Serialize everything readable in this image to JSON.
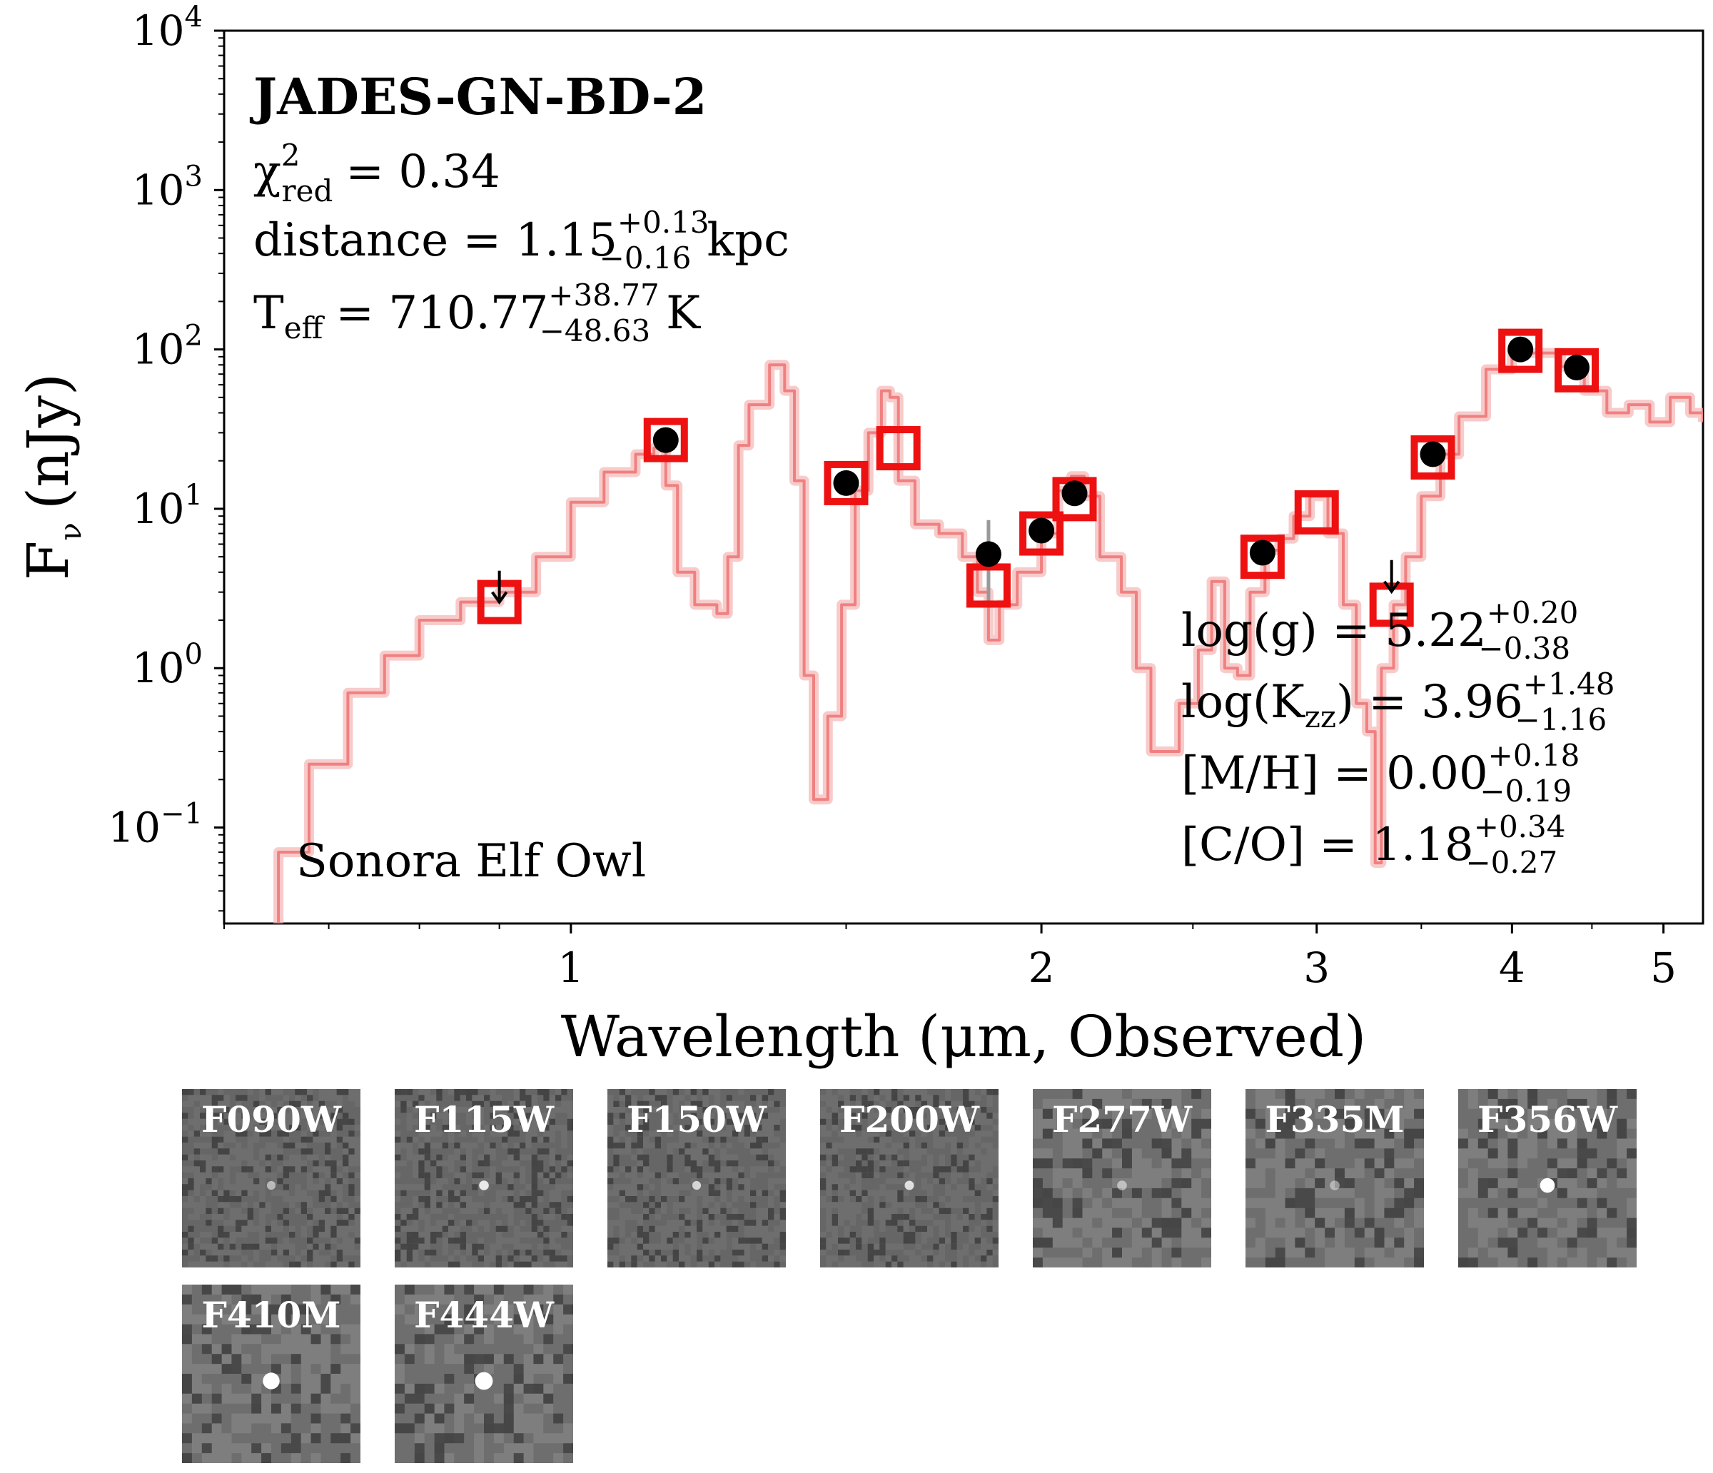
{
  "chart_data": {
    "type": "scatter",
    "title": "JADES-GN-BD-2",
    "xlabel": "Wavelength (μm, Observed)",
    "ylabel_main": "F",
    "ylabel_sub": "ν",
    "ylabel_unit": "(nJy)",
    "xscale": "log",
    "yscale": "log",
    "xlim": [
      0.6,
      5.3
    ],
    "ylim": [
      0.025,
      10000
    ],
    "x_ticks": [
      {
        "value": 1,
        "label": "1"
      },
      {
        "value": 2,
        "label": "2"
      },
      {
        "value": 3,
        "label": "3"
      },
      {
        "value": 4,
        "label": "4"
      },
      {
        "value": 5,
        "label": "5"
      }
    ],
    "y_ticks": [
      {
        "value": 0.1,
        "base": "10",
        "exp": "−1"
      },
      {
        "value": 1,
        "base": "10",
        "exp": "0"
      },
      {
        "value": 10,
        "base": "10",
        "exp": "1"
      },
      {
        "value": 100,
        "base": "10",
        "exp": "2"
      },
      {
        "value": 1000,
        "base": "10",
        "exp": "3"
      },
      {
        "value": 10000,
        "base": "10",
        "exp": "4"
      }
    ],
    "model_label": "Sonora Elf Owl",
    "fit_stats": {
      "chi2_prefix": "χ",
      "chi2_sup": "2",
      "chi2_sub": "red",
      "chi2_value": "= 0.34",
      "distance_prefix": "distance = 1.15",
      "distance_up": "+0.13",
      "distance_down": "−0.16",
      "distance_unit": "kpc",
      "teff_prefix": "T",
      "teff_sub": "eff",
      "teff_value": "= 710.77",
      "teff_up": "+38.77",
      "teff_down": "−48.63",
      "teff_unit": "K"
    },
    "params": [
      {
        "text": "log(g) = 5.22",
        "up": "+0.20",
        "down": "−0.38"
      },
      {
        "text_pre": "log(K",
        "text_sub": "zz",
        "text_post": ") = 3.96",
        "up": "+1.48",
        "down": "−1.16"
      },
      {
        "text": "[M/H] = 0.00",
        "up": "+0.18",
        "down": "−0.19"
      },
      {
        "text": "[C/O] = 1.18",
        "up": "+0.34",
        "down": "−0.27"
      }
    ],
    "series": [
      {
        "name": "Observed photometry",
        "marker": "circle",
        "color": "#000000",
        "points": [
          {
            "x": 1.15,
            "y": 27,
            "err_low": 24,
            "err_high": 30
          },
          {
            "x": 1.5,
            "y": 14.5,
            "err_low": 13,
            "err_high": 16
          },
          {
            "x": 1.85,
            "y": 5.2,
            "err_low": 2.4,
            "err_high": 8.5
          },
          {
            "x": 2.0,
            "y": 7.3,
            "err_low": 6.6,
            "err_high": 8.0
          },
          {
            "x": 2.1,
            "y": 12.5,
            "err_low": 11.5,
            "err_high": 13.5
          },
          {
            "x": 2.77,
            "y": 5.3,
            "err_low": 4.8,
            "err_high": 5.8
          },
          {
            "x": 3.56,
            "y": 22,
            "err_low": 20.5,
            "err_high": 23.5
          },
          {
            "x": 4.05,
            "y": 100,
            "err_low": 95,
            "err_high": 105
          },
          {
            "x": 4.4,
            "y": 77,
            "err_low": 73,
            "err_high": 81
          }
        ]
      },
      {
        "name": "Upper limits",
        "marker": "arrow-down",
        "color": "#000000",
        "points": [
          {
            "x": 0.9,
            "y": 3.0
          },
          {
            "x": 3.35,
            "y": 3.5
          }
        ]
      },
      {
        "name": "Model photometry",
        "marker": "square-open",
        "color": "#ee1111",
        "points": [
          {
            "x": 0.9,
            "y": 2.6
          },
          {
            "x": 1.15,
            "y": 27
          },
          {
            "x": 1.5,
            "y": 14.5
          },
          {
            "x": 1.62,
            "y": 24
          },
          {
            "x": 1.85,
            "y": 3.3
          },
          {
            "x": 2.0,
            "y": 7.0
          },
          {
            "x": 2.1,
            "y": 11.5
          },
          {
            "x": 2.77,
            "y": 5.0
          },
          {
            "x": 3.0,
            "y": 9.5
          },
          {
            "x": 3.35,
            "y": 2.5
          },
          {
            "x": 3.56,
            "y": 21
          },
          {
            "x": 4.05,
            "y": 98
          },
          {
            "x": 4.4,
            "y": 74
          }
        ]
      },
      {
        "name": "Sonora Elf Owl model spectrum",
        "marker": "line",
        "color": "#f08080",
        "points": [
          {
            "x": 0.62,
            "y": 0.02
          },
          {
            "x": 0.65,
            "y": 0.07
          },
          {
            "x": 0.68,
            "y": 0.25
          },
          {
            "x": 0.72,
            "y": 0.7
          },
          {
            "x": 0.76,
            "y": 1.2
          },
          {
            "x": 0.8,
            "y": 2.0
          },
          {
            "x": 0.85,
            "y": 2.6
          },
          {
            "x": 0.9,
            "y": 3.0
          },
          {
            "x": 0.95,
            "y": 5
          },
          {
            "x": 1.0,
            "y": 11
          },
          {
            "x": 1.05,
            "y": 17
          },
          {
            "x": 1.1,
            "y": 22
          },
          {
            "x": 1.13,
            "y": 24
          },
          {
            "x": 1.15,
            "y": 14
          },
          {
            "x": 1.17,
            "y": 4
          },
          {
            "x": 1.2,
            "y": 2.5
          },
          {
            "x": 1.24,
            "y": 2.2
          },
          {
            "x": 1.26,
            "y": 5
          },
          {
            "x": 1.28,
            "y": 25
          },
          {
            "x": 1.3,
            "y": 45
          },
          {
            "x": 1.34,
            "y": 80
          },
          {
            "x": 1.37,
            "y": 55
          },
          {
            "x": 1.39,
            "y": 15
          },
          {
            "x": 1.41,
            "y": 0.9
          },
          {
            "x": 1.43,
            "y": 0.15
          },
          {
            "x": 1.46,
            "y": 0.5
          },
          {
            "x": 1.49,
            "y": 2.5
          },
          {
            "x": 1.52,
            "y": 13
          },
          {
            "x": 1.55,
            "y": 30
          },
          {
            "x": 1.58,
            "y": 55
          },
          {
            "x": 1.6,
            "y": 50
          },
          {
            "x": 1.62,
            "y": 15
          },
          {
            "x": 1.66,
            "y": 8
          },
          {
            "x": 1.72,
            "y": 7
          },
          {
            "x": 1.78,
            "y": 5
          },
          {
            "x": 1.82,
            "y": 3
          },
          {
            "x": 1.85,
            "y": 1.5
          },
          {
            "x": 1.88,
            "y": 2.5
          },
          {
            "x": 1.93,
            "y": 4
          },
          {
            "x": 2.0,
            "y": 7
          },
          {
            "x": 2.05,
            "y": 13
          },
          {
            "x": 2.09,
            "y": 16
          },
          {
            "x": 2.13,
            "y": 12
          },
          {
            "x": 2.18,
            "y": 5
          },
          {
            "x": 2.25,
            "y": 3
          },
          {
            "x": 2.3,
            "y": 1.0
          },
          {
            "x": 2.35,
            "y": 0.3
          },
          {
            "x": 2.4,
            "y": 0.3
          },
          {
            "x": 2.45,
            "y": 0.6
          },
          {
            "x": 2.52,
            "y": 1.3
          },
          {
            "x": 2.57,
            "y": 3.5
          },
          {
            "x": 2.62,
            "y": 1.0
          },
          {
            "x": 2.67,
            "y": 0.9
          },
          {
            "x": 2.72,
            "y": 3
          },
          {
            "x": 2.78,
            "y": 5.5
          },
          {
            "x": 2.84,
            "y": 6.5
          },
          {
            "x": 2.9,
            "y": 9
          },
          {
            "x": 2.97,
            "y": 12
          },
          {
            "x": 3.05,
            "y": 7
          },
          {
            "x": 3.12,
            "y": 2.5
          },
          {
            "x": 3.18,
            "y": 0.6
          },
          {
            "x": 3.23,
            "y": 0.4
          },
          {
            "x": 3.27,
            "y": 0.06
          },
          {
            "x": 3.3,
            "y": 1.0
          },
          {
            "x": 3.36,
            "y": 2.5
          },
          {
            "x": 3.42,
            "y": 5
          },
          {
            "x": 3.5,
            "y": 12
          },
          {
            "x": 3.6,
            "y": 22
          },
          {
            "x": 3.7,
            "y": 38
          },
          {
            "x": 3.85,
            "y": 75
          },
          {
            "x": 4.0,
            "y": 95
          },
          {
            "x": 4.15,
            "y": 95
          },
          {
            "x": 4.3,
            "y": 78
          },
          {
            "x": 4.45,
            "y": 55
          },
          {
            "x": 4.6,
            "y": 40
          },
          {
            "x": 4.75,
            "y": 45
          },
          {
            "x": 4.9,
            "y": 35
          },
          {
            "x": 5.05,
            "y": 50
          },
          {
            "x": 5.2,
            "y": 40
          },
          {
            "x": 5.3,
            "y": 35
          }
        ]
      }
    ],
    "cutouts": [
      {
        "label": "F090W",
        "source_intensity": 0.35,
        "source_size": 0.15,
        "noise": "fine"
      },
      {
        "label": "F115W",
        "source_intensity": 0.8,
        "source_size": 0.2,
        "noise": "fine"
      },
      {
        "label": "F150W",
        "source_intensity": 0.6,
        "source_size": 0.15,
        "noise": "fine"
      },
      {
        "label": "F200W",
        "source_intensity": 0.7,
        "source_size": 0.18,
        "noise": "fine"
      },
      {
        "label": "F277W",
        "source_intensity": 0.3,
        "source_size": 0.2,
        "noise": "coarse"
      },
      {
        "label": "F335M",
        "source_intensity": 0.2,
        "source_size": 0.2,
        "noise": "coarse"
      },
      {
        "label": "F356W",
        "source_intensity": 1.0,
        "source_size": 0.45,
        "noise": "coarse"
      },
      {
        "label": "F410M",
        "source_intensity": 1.0,
        "source_size": 0.55,
        "noise": "coarse"
      },
      {
        "label": "F444W",
        "source_intensity": 1.0,
        "source_size": 0.6,
        "noise": "coarse"
      }
    ]
  }
}
